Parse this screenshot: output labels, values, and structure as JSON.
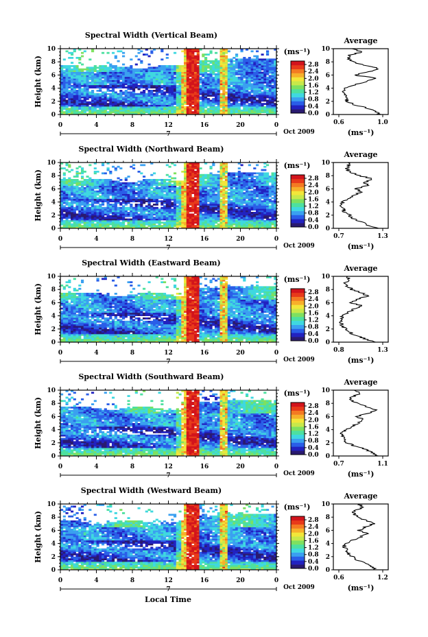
{
  "figure": {
    "xlabel_bottom": "Local Time",
    "ylabel": "Height (km)",
    "day_label": "7",
    "date_label": "Oct 2009",
    "colorbar_unit": "(ms⁻¹)",
    "average_title": "Average",
    "average_xlabel": "(ms⁻¹)",
    "colorbar_colors": [
      "#2a1a70",
      "#2222c0",
      "#2a5ee8",
      "#3aa0f0",
      "#3fd8e0",
      "#4de0a0",
      "#7ee060",
      "#c8e84a",
      "#f2e63a",
      "#f7b02a",
      "#f47a22",
      "#e83a1a",
      "#d2141c"
    ]
  },
  "chart_data": [
    {
      "type": "heatmap",
      "title": "Spectral Width (Vertical Beam)",
      "x_ticks": [
        "0",
        "4",
        "8",
        "12",
        "16",
        "20",
        "0"
      ],
      "x_range_hours": [
        0,
        24
      ],
      "y_ticks": [
        "0",
        "2",
        "4",
        "6",
        "8",
        "10"
      ],
      "y_range_km": [
        0,
        10
      ],
      "colorbar_ticks": [
        "0.0",
        "0.4",
        "0.8",
        "1.2",
        "1.6",
        "2.0",
        "2.4",
        "2.8"
      ],
      "colorbar_range": [
        0,
        3.0
      ],
      "average_profile": {
        "x_ticks": [
          "0.6",
          "1.0"
        ],
        "x_range": [
          0.6,
          1.0
        ],
        "y_ticks": [
          "0",
          "2",
          "4",
          "6",
          "8",
          "10"
        ],
        "height_km": [
          0,
          0.5,
          1,
          1.5,
          2,
          2.5,
          3,
          3.5,
          4,
          4.5,
          5,
          5.5,
          6,
          6.5,
          7,
          7.5,
          8,
          8.5,
          9,
          9.5,
          10
        ],
        "values": [
          0.98,
          0.93,
          0.85,
          0.74,
          0.68,
          0.66,
          0.65,
          0.64,
          0.66,
          0.74,
          0.84,
          0.95,
          0.74,
          0.88,
          0.96,
          0.83,
          0.72,
          0.69,
          0.7,
          0.8,
          0.72
        ]
      }
    },
    {
      "type": "heatmap",
      "title": "Spectral Width (Northward Beam)",
      "x_ticks": [
        "0",
        "4",
        "8",
        "12",
        "16",
        "20",
        "0"
      ],
      "x_range_hours": [
        0,
        24
      ],
      "y_ticks": [
        "0",
        "2",
        "4",
        "6",
        "8",
        "10"
      ],
      "y_range_km": [
        0,
        10
      ],
      "colorbar_ticks": [
        "0.0",
        "0.4",
        "0.8",
        "1.2",
        "1.6",
        "2.0",
        "2.4",
        "2.8"
      ],
      "colorbar_range": [
        0,
        3.0
      ],
      "average_profile": {
        "x_ticks": [
          "0.7",
          "1.3"
        ],
        "x_range": [
          0.7,
          1.3
        ],
        "y_ticks": [
          "0",
          "2",
          "4",
          "6",
          "8",
          "10"
        ],
        "height_km": [
          0,
          0.5,
          1,
          1.5,
          2,
          2.5,
          3,
          3.5,
          4,
          4.5,
          5,
          5.5,
          6,
          6.5,
          7,
          7.5,
          8,
          8.5,
          9,
          9.5,
          10
        ],
        "values": [
          1.22,
          1.1,
          1.0,
          0.9,
          0.84,
          0.78,
          0.76,
          0.74,
          0.76,
          0.82,
          0.9,
          1.0,
          0.94,
          1.1,
          1.05,
          1.16,
          0.98,
          0.86,
          0.8,
          0.84,
          0.82
        ]
      }
    },
    {
      "type": "heatmap",
      "title": "Spectral Width (Eastward Beam)",
      "x_ticks": [
        "0",
        "4",
        "8",
        "12",
        "16",
        "20",
        "0"
      ],
      "x_range_hours": [
        0,
        24
      ],
      "y_ticks": [
        "0",
        "2",
        "4",
        "6",
        "8",
        "10"
      ],
      "y_range_km": [
        0,
        10
      ],
      "colorbar_ticks": [
        "0.0",
        "0.4",
        "0.8",
        "1.2",
        "1.6",
        "2.0",
        "2.4",
        "2.8"
      ],
      "colorbar_range": [
        0,
        3.0
      ],
      "average_profile": {
        "x_ticks": [
          "0.8",
          "1.3"
        ],
        "x_range": [
          0.8,
          1.3
        ],
        "y_ticks": [
          "0",
          "2",
          "4",
          "6",
          "8",
          "10"
        ],
        "height_km": [
          0,
          0.5,
          1,
          1.5,
          2,
          2.5,
          3,
          3.5,
          4,
          4.5,
          5,
          5.5,
          6,
          6.5,
          7,
          7.5,
          8,
          8.5,
          9,
          9.5,
          10
        ],
        "values": [
          1.22,
          1.1,
          1.0,
          0.92,
          0.88,
          0.84,
          0.83,
          0.82,
          0.84,
          0.9,
          0.97,
          1.06,
          0.94,
          1.0,
          1.12,
          1.06,
          0.95,
          0.9,
          0.88,
          0.92,
          0.9
        ]
      }
    },
    {
      "type": "heatmap",
      "title": "Spectral Width (Southward Beam)",
      "x_ticks": [
        "0",
        "4",
        "8",
        "12",
        "16",
        "20",
        "0"
      ],
      "x_range_hours": [
        0,
        24
      ],
      "y_ticks": [
        "0",
        "2",
        "4",
        "6",
        "8",
        "10"
      ],
      "y_range_km": [
        0,
        10
      ],
      "colorbar_ticks": [
        "0.0",
        "0.4",
        "0.8",
        "1.2",
        "1.6",
        "2.0",
        "2.4",
        "2.8"
      ],
      "colorbar_range": [
        0,
        3.0
      ],
      "average_profile": {
        "x_ticks": [
          "0.7",
          "1.1"
        ],
        "x_range": [
          0.7,
          1.1
        ],
        "y_ticks": [
          "0",
          "2",
          "4",
          "6",
          "8",
          "10"
        ],
        "height_km": [
          0,
          0.5,
          1,
          1.5,
          2,
          2.5,
          3,
          3.5,
          4,
          4.5,
          5,
          5.5,
          6,
          6.5,
          7,
          7.5,
          8,
          8.5,
          9,
          9.5,
          10
        ],
        "values": [
          1.05,
          1.0,
          0.95,
          0.84,
          0.78,
          0.75,
          0.74,
          0.73,
          0.76,
          0.82,
          0.88,
          0.93,
          0.86,
          0.98,
          1.04,
          0.95,
          0.86,
          0.8,
          0.82,
          0.9,
          0.84
        ]
      }
    },
    {
      "type": "heatmap",
      "title": "Spectral Width (Westward Beam)",
      "x_ticks": [
        "0",
        "4",
        "8",
        "12",
        "16",
        "20",
        "0"
      ],
      "x_range_hours": [
        0,
        24
      ],
      "y_ticks": [
        "0",
        "2",
        "4",
        "6",
        "8",
        "10"
      ],
      "y_range_km": [
        0,
        10
      ],
      "colorbar_ticks": [
        "0.0",
        "0.4",
        "0.8",
        "1.2",
        "1.6",
        "2.0",
        "2.4",
        "2.8"
      ],
      "colorbar_range": [
        0,
        3.0
      ],
      "average_profile": {
        "x_ticks": [
          "0.6",
          "1.2"
        ],
        "x_range": [
          0.6,
          1.2
        ],
        "y_ticks": [
          "0",
          "2",
          "4",
          "6",
          "8",
          "10"
        ],
        "height_km": [
          0,
          0.5,
          1,
          1.5,
          2,
          2.5,
          3,
          3.5,
          4,
          4.5,
          5,
          5.5,
          6,
          6.5,
          7,
          7.5,
          8,
          8.5,
          9,
          9.5,
          10
        ],
        "values": [
          1.12,
          1.05,
          0.98,
          0.86,
          0.78,
          0.72,
          0.7,
          0.68,
          0.7,
          0.8,
          0.9,
          0.98,
          0.88,
          0.96,
          1.08,
          0.97,
          0.86,
          0.8,
          0.82,
          0.95,
          0.88
        ]
      }
    }
  ]
}
